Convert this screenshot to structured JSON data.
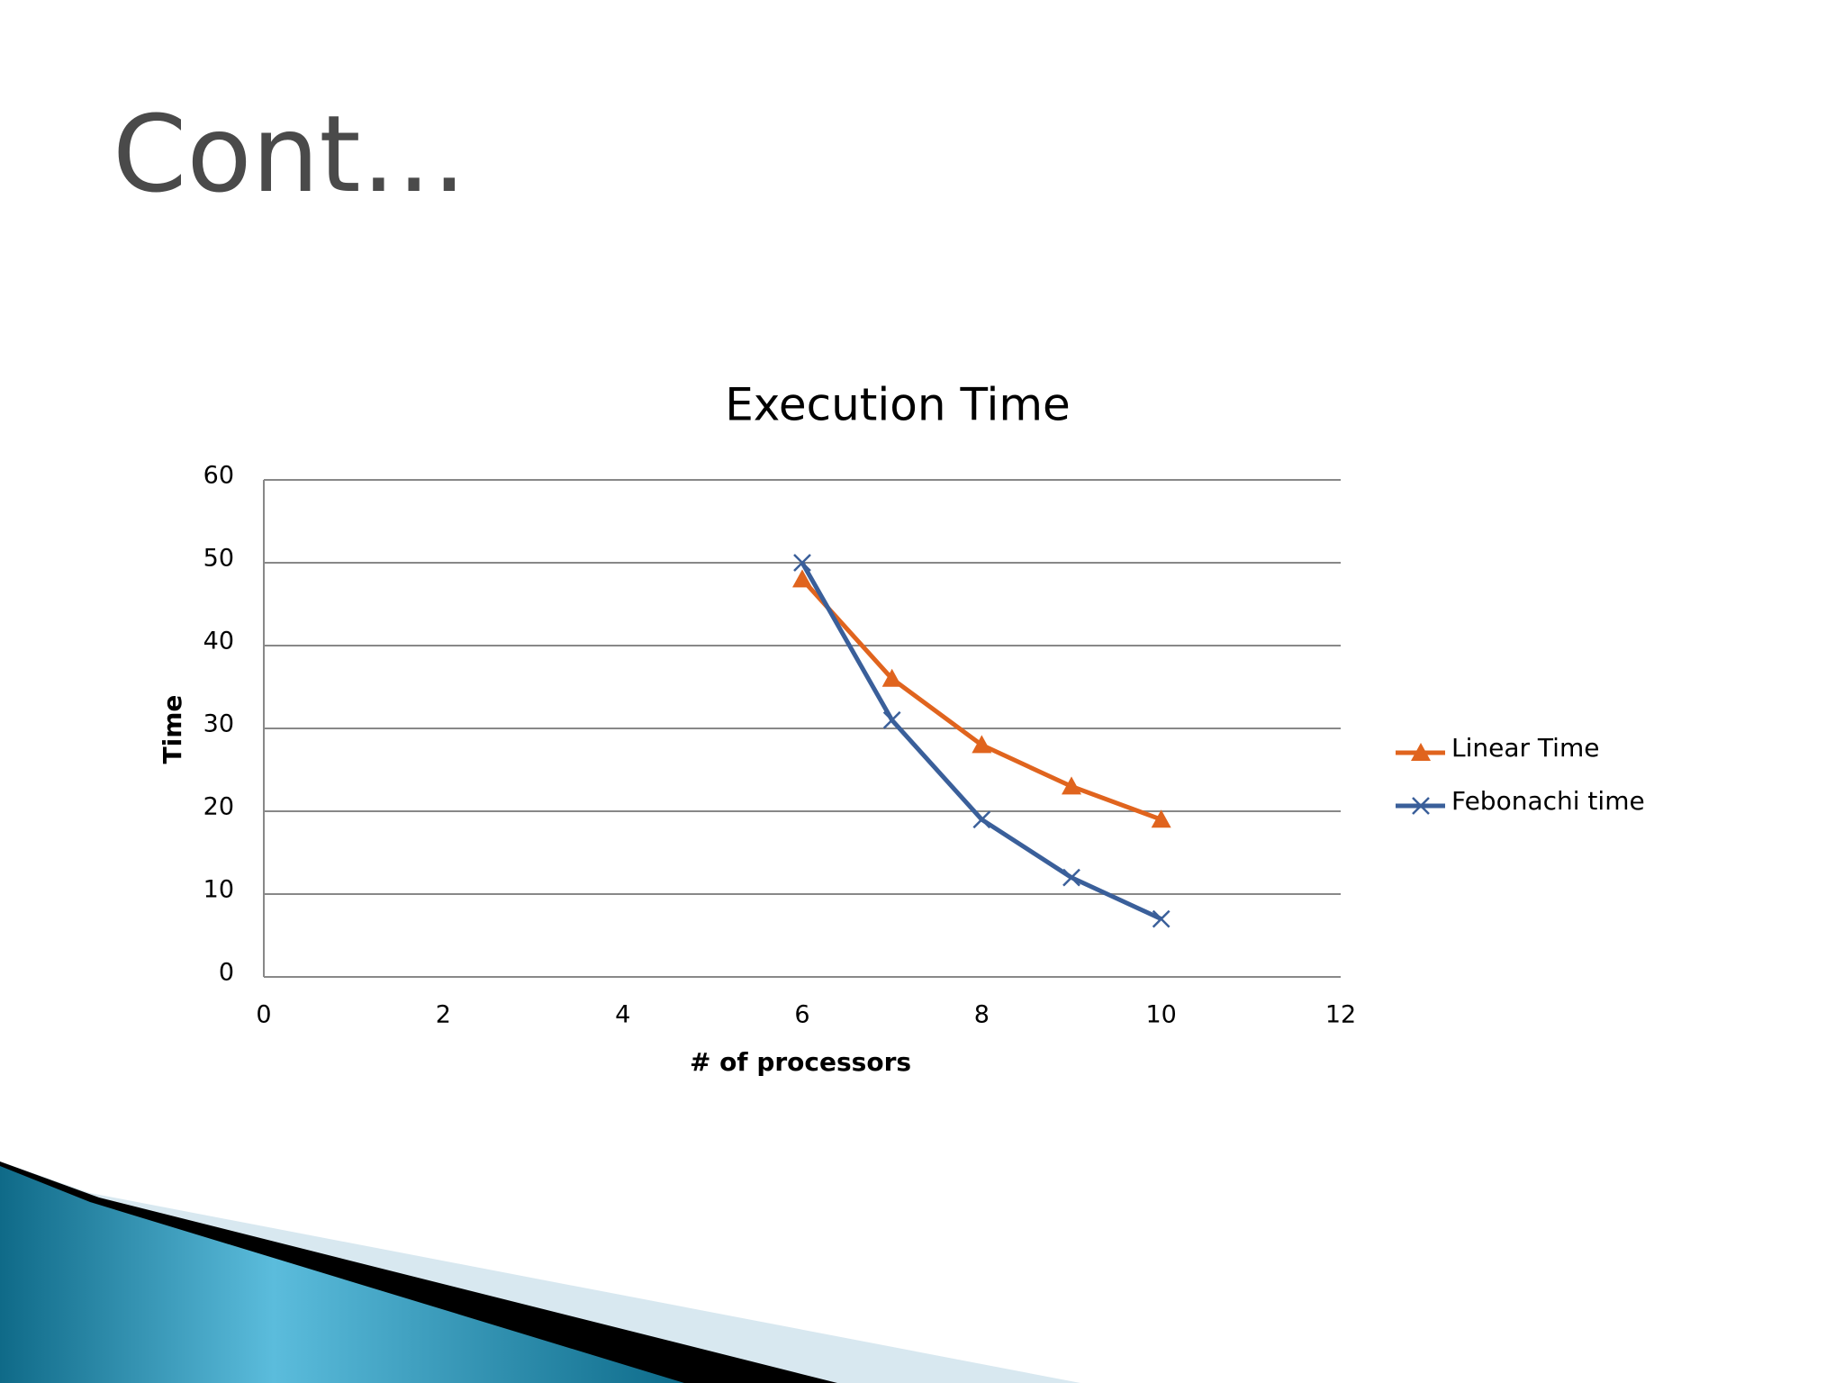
{
  "slide_title": "Cont…",
  "chart_data": {
    "type": "line",
    "title": "Execution Time",
    "x_label": "# of processors",
    "y_label": "Time",
    "x": [
      6,
      7,
      8,
      9,
      10
    ],
    "series": [
      {
        "name": "Linear Time",
        "color": "#e0641e",
        "marker": "triangle",
        "values": [
          48,
          36,
          28,
          23,
          19
        ]
      },
      {
        "name": "Febonachi time",
        "color": "#3a5f9a",
        "marker": "x",
        "values": [
          50,
          31,
          19,
          12,
          7
        ]
      }
    ],
    "xlim": [
      0,
      12
    ],
    "xticks": [
      0,
      2,
      4,
      6,
      8,
      10,
      12
    ],
    "ylim": [
      0,
      60
    ],
    "yticks": [
      0,
      10,
      20,
      30,
      40,
      50,
      60
    ],
    "grid": true,
    "legend": "right"
  }
}
